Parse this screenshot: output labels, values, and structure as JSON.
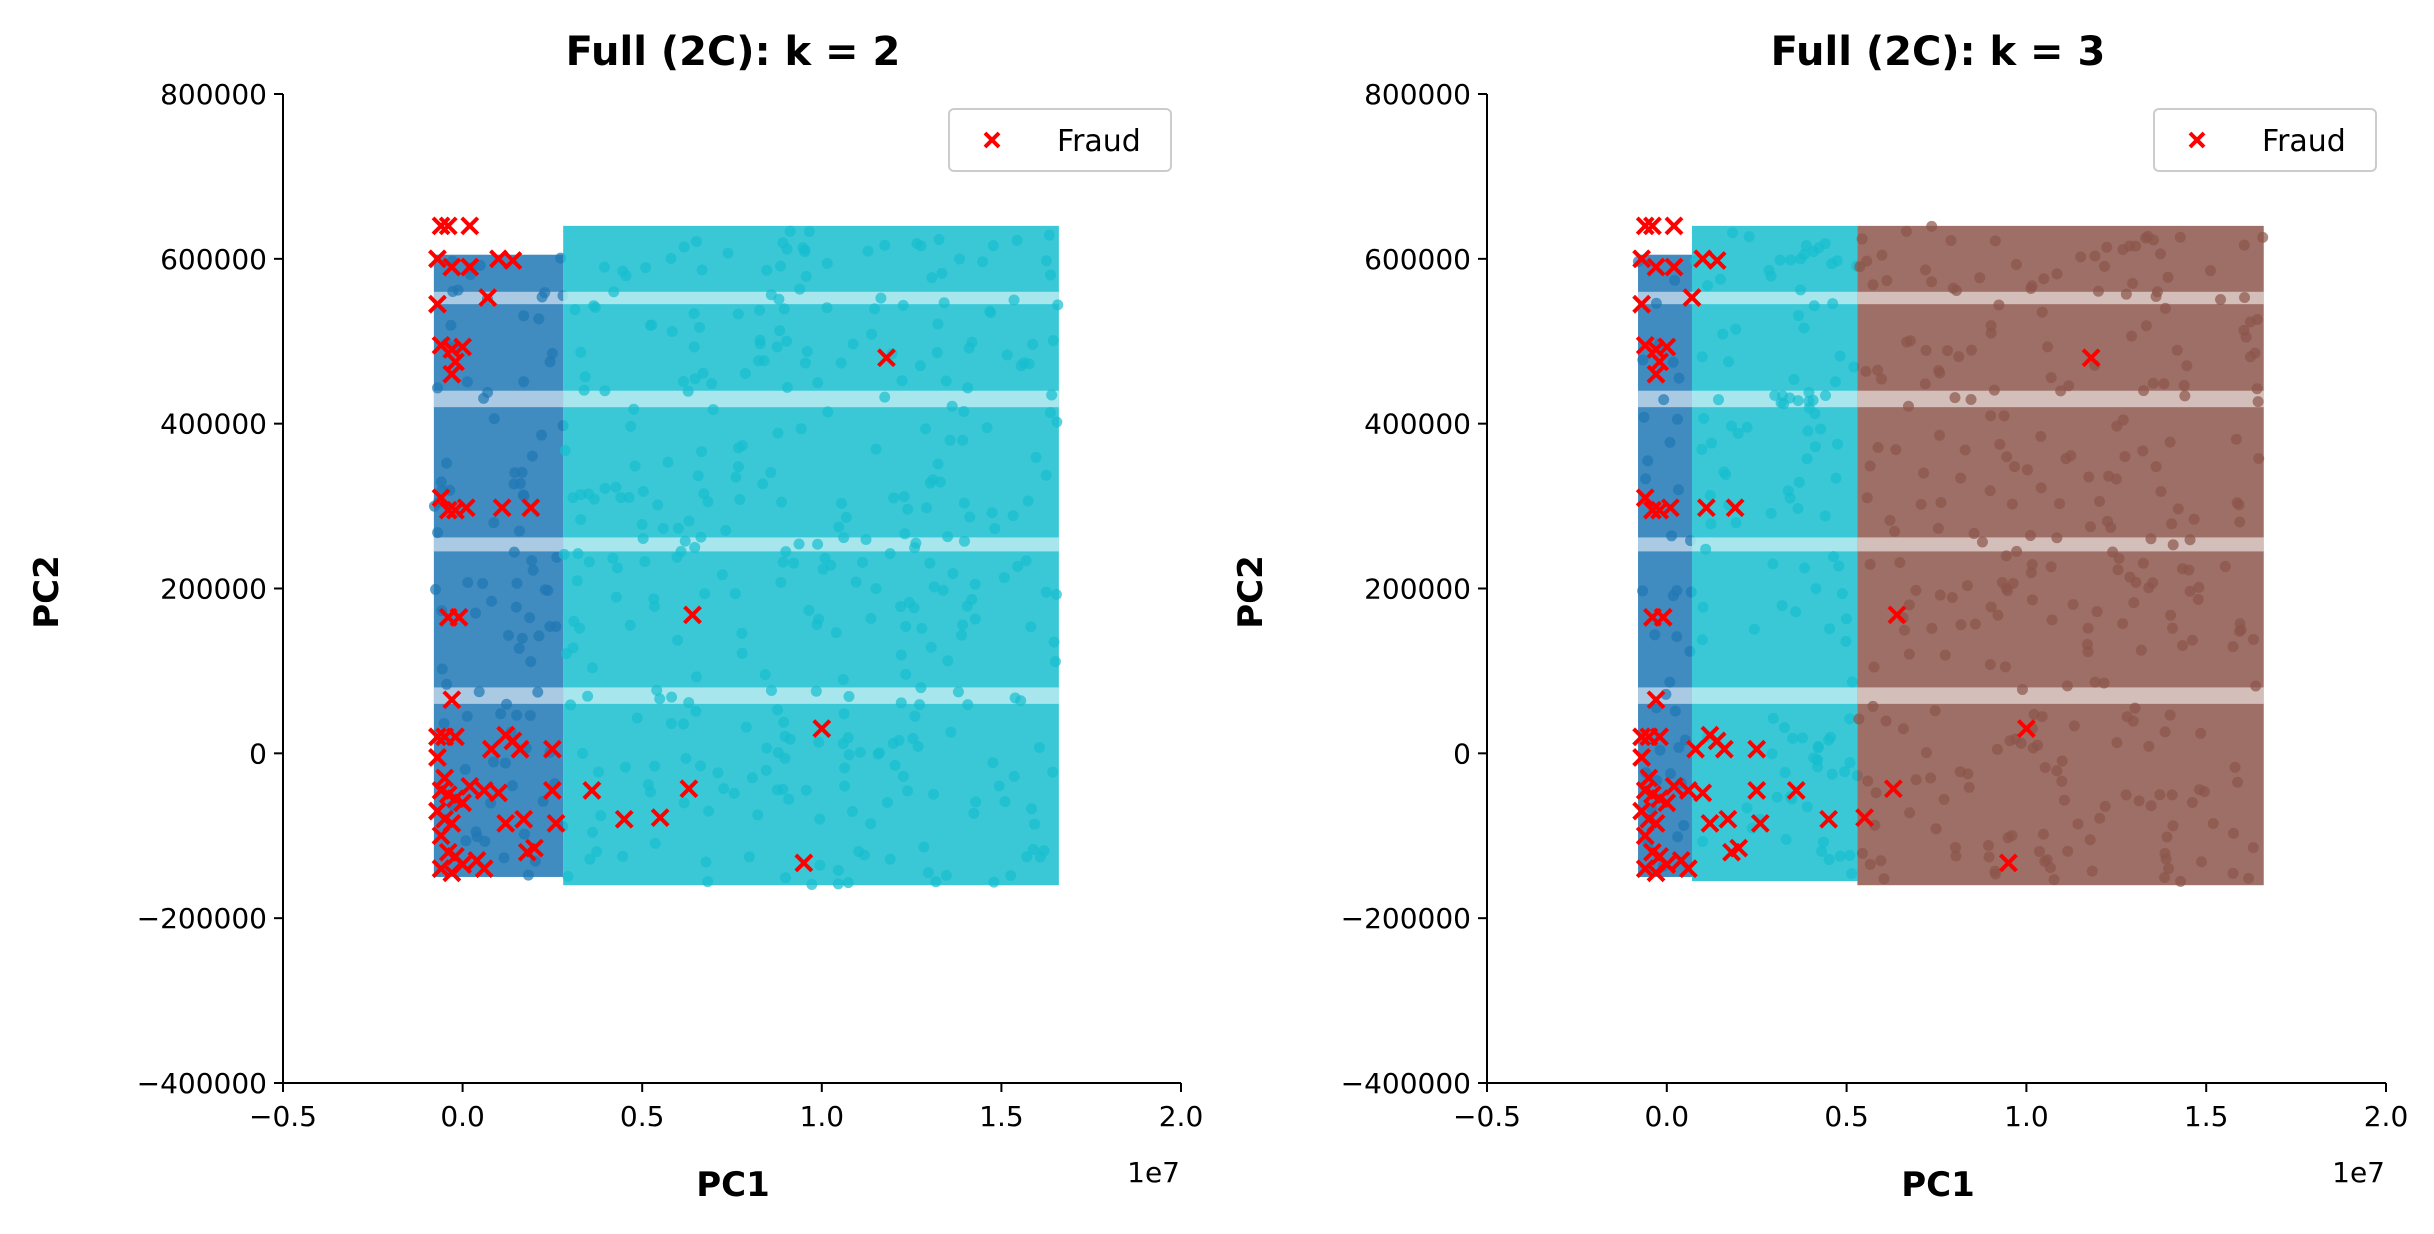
{
  "chart_data": [
    {
      "type": "scatter",
      "title": "Full (2C): k = 2",
      "xlabel": "PC1",
      "ylabel": "PC2",
      "x_offset_label": "1e7",
      "xlim": [
        -0.5,
        2.0
      ],
      "ylim": [
        -400000,
        800000
      ],
      "xticks": [
        -0.5,
        0.0,
        0.5,
        1.0,
        1.5,
        2.0
      ],
      "xtick_labels": [
        "−0.5",
        "0.0",
        "0.5",
        "1.0",
        "1.5",
        "2.0"
      ],
      "yticks": [
        -400000,
        -200000,
        0,
        200000,
        400000,
        600000,
        800000
      ],
      "ytick_labels": [
        "−400000",
        "−200000",
        "0",
        "200000",
        "400000",
        "600000",
        "800000"
      ],
      "legend": {
        "placement": "top-right",
        "entries": [
          {
            "label": "Fraud",
            "marker": "x",
            "color": "#ff0000"
          }
        ]
      },
      "grid": false,
      "clusters": [
        {
          "color": "#1f77b4",
          "x_range": [
            -0.08,
            0.28
          ],
          "y_range": [
            -150000,
            605000
          ]
        },
        {
          "color": "#17becf",
          "x_range": [
            0.28,
            1.66
          ],
          "y_range": [
            -160000,
            640000
          ]
        }
      ],
      "series": [
        {
          "name": "Fraud",
          "marker": "x",
          "color": "#ff0000",
          "points": [
            [
              -0.06,
              640000
            ],
            [
              -0.04,
              640000
            ],
            [
              0.02,
              640000
            ],
            [
              -0.07,
              600000
            ],
            [
              -0.03,
              590000
            ],
            [
              0.02,
              590000
            ],
            [
              0.1,
              600000
            ],
            [
              0.14,
              598000
            ],
            [
              -0.07,
              545000
            ],
            [
              0.07,
              553000
            ],
            [
              -0.06,
              495000
            ],
            [
              -0.03,
              490000
            ],
            [
              0.0,
              493000
            ],
            [
              -0.02,
              475000
            ],
            [
              -0.03,
              460000
            ],
            [
              1.18,
              480000
            ],
            [
              -0.06,
              310000
            ],
            [
              -0.04,
              295000
            ],
            [
              -0.02,
              295000
            ],
            [
              0.01,
              298000
            ],
            [
              0.11,
              298000
            ],
            [
              0.19,
              298000
            ],
            [
              -0.04,
              165000
            ],
            [
              -0.01,
              165000
            ],
            [
              0.64,
              168000
            ],
            [
              -0.03,
              65000
            ],
            [
              1.0,
              30000
            ],
            [
              -0.07,
              20000
            ],
            [
              -0.05,
              20000
            ],
            [
              -0.02,
              20000
            ],
            [
              0.12,
              22000
            ],
            [
              0.14,
              15000
            ],
            [
              0.08,
              5000
            ],
            [
              0.16,
              5000
            ],
            [
              0.25,
              5000
            ],
            [
              0.36,
              -45000
            ],
            [
              0.45,
              -80000
            ],
            [
              0.55,
              -78000
            ],
            [
              0.63,
              -43000
            ],
            [
              0.25,
              -45000
            ],
            [
              0.26,
              -85000
            ],
            [
              0.17,
              -80000
            ],
            [
              0.12,
              -85000
            ],
            [
              0.18,
              -120000
            ],
            [
              0.2,
              -115000
            ],
            [
              0.06,
              -45000
            ],
            [
              0.04,
              -130000
            ],
            [
              0.95,
              -133000
            ],
            [
              -0.07,
              -5000
            ],
            [
              -0.05,
              -30000
            ],
            [
              -0.06,
              -45000
            ],
            [
              -0.04,
              -50000
            ],
            [
              -0.02,
              -55000
            ],
            [
              0.0,
              -60000
            ],
            [
              -0.07,
              -70000
            ],
            [
              -0.05,
              -80000
            ],
            [
              -0.03,
              -85000
            ],
            [
              -0.06,
              -100000
            ],
            [
              -0.04,
              -120000
            ],
            [
              -0.02,
              -125000
            ],
            [
              0.0,
              -135000
            ],
            [
              -0.06,
              -140000
            ],
            [
              -0.03,
              -145000
            ],
            [
              0.06,
              -140000
            ],
            [
              0.1,
              -48000
            ],
            [
              0.02,
              -40000
            ]
          ]
        }
      ]
    },
    {
      "type": "scatter",
      "title": "Full (2C): k = 3",
      "xlabel": "PC1",
      "ylabel": "PC2",
      "x_offset_label": "1e7",
      "xlim": [
        -0.5,
        2.0
      ],
      "ylim": [
        -400000,
        800000
      ],
      "xticks": [
        -0.5,
        0.0,
        0.5,
        1.0,
        1.5,
        2.0
      ],
      "xtick_labels": [
        "−0.5",
        "0.0",
        "0.5",
        "1.0",
        "1.5",
        "2.0"
      ],
      "yticks": [
        -400000,
        -200000,
        0,
        200000,
        400000,
        600000,
        800000
      ],
      "ytick_labels": [
        "−400000",
        "−200000",
        "0",
        "200000",
        "400000",
        "600000",
        "800000"
      ],
      "legend": {
        "placement": "top-right",
        "entries": [
          {
            "label": "Fraud",
            "marker": "x",
            "color": "#ff0000"
          }
        ]
      },
      "grid": false,
      "clusters": [
        {
          "color": "#1f77b4",
          "x_range": [
            -0.08,
            0.07
          ],
          "y_range": [
            -150000,
            605000
          ]
        },
        {
          "color": "#17becf",
          "x_range": [
            0.07,
            0.53
          ],
          "y_range": [
            -155000,
            640000
          ]
        },
        {
          "color": "#8c564b",
          "x_range": [
            0.53,
            1.66
          ],
          "y_range": [
            -160000,
            640000
          ]
        }
      ],
      "series": [
        {
          "name": "Fraud",
          "marker": "x",
          "color": "#ff0000",
          "points": [
            [
              -0.06,
              640000
            ],
            [
              -0.04,
              640000
            ],
            [
              0.02,
              640000
            ],
            [
              -0.07,
              600000
            ],
            [
              -0.03,
              590000
            ],
            [
              0.02,
              590000
            ],
            [
              0.1,
              600000
            ],
            [
              0.14,
              598000
            ],
            [
              -0.07,
              545000
            ],
            [
              0.07,
              553000
            ],
            [
              -0.06,
              495000
            ],
            [
              -0.03,
              490000
            ],
            [
              0.0,
              493000
            ],
            [
              -0.02,
              475000
            ],
            [
              -0.03,
              460000
            ],
            [
              1.18,
              480000
            ],
            [
              -0.06,
              310000
            ],
            [
              -0.04,
              295000
            ],
            [
              -0.02,
              295000
            ],
            [
              0.01,
              298000
            ],
            [
              0.11,
              298000
            ],
            [
              0.19,
              298000
            ],
            [
              -0.04,
              165000
            ],
            [
              -0.01,
              165000
            ],
            [
              0.64,
              168000
            ],
            [
              -0.03,
              65000
            ],
            [
              1.0,
              30000
            ],
            [
              -0.07,
              20000
            ],
            [
              -0.05,
              20000
            ],
            [
              -0.02,
              20000
            ],
            [
              0.12,
              22000
            ],
            [
              0.14,
              15000
            ],
            [
              0.08,
              5000
            ],
            [
              0.16,
              5000
            ],
            [
              0.25,
              5000
            ],
            [
              0.36,
              -45000
            ],
            [
              0.45,
              -80000
            ],
            [
              0.55,
              -78000
            ],
            [
              0.63,
              -43000
            ],
            [
              0.25,
              -45000
            ],
            [
              0.26,
              -85000
            ],
            [
              0.17,
              -80000
            ],
            [
              0.12,
              -85000
            ],
            [
              0.18,
              -120000
            ],
            [
              0.2,
              -115000
            ],
            [
              0.06,
              -45000
            ],
            [
              0.04,
              -130000
            ],
            [
              0.95,
              -133000
            ],
            [
              -0.07,
              -5000
            ],
            [
              -0.05,
              -30000
            ],
            [
              -0.06,
              -45000
            ],
            [
              -0.04,
              -50000
            ],
            [
              -0.02,
              -55000
            ],
            [
              0.0,
              -60000
            ],
            [
              -0.07,
              -70000
            ],
            [
              -0.05,
              -80000
            ],
            [
              -0.03,
              -85000
            ],
            [
              -0.06,
              -100000
            ],
            [
              -0.04,
              -120000
            ],
            [
              -0.02,
              -125000
            ],
            [
              0.0,
              -135000
            ],
            [
              -0.06,
              -140000
            ],
            [
              -0.03,
              -145000
            ],
            [
              0.06,
              -140000
            ],
            [
              0.1,
              -48000
            ],
            [
              0.02,
              -40000
            ]
          ]
        }
      ]
    }
  ]
}
